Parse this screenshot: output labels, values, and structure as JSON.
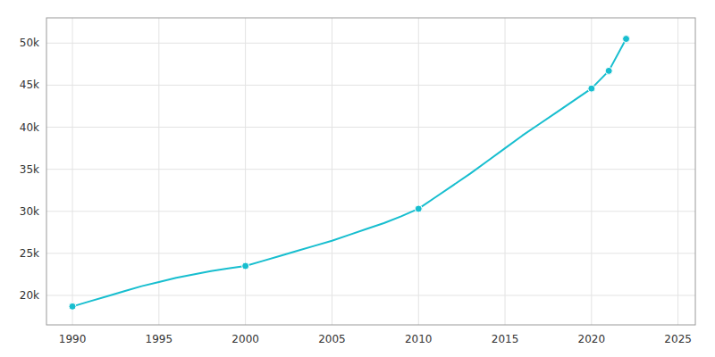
{
  "chart_data": {
    "type": "line",
    "x": [
      1990,
      1991,
      1992,
      1993,
      1994,
      1995,
      1996,
      1997,
      1998,
      1999,
      2000,
      2001,
      2002,
      2003,
      2004,
      2005,
      2006,
      2007,
      2008,
      2009,
      2010,
      2011,
      2012,
      2013,
      2014,
      2015,
      2016,
      2017,
      2018,
      2019,
      2020,
      2021,
      2022
    ],
    "series": [
      {
        "color": "#17becf",
        "values": [
          18690,
          19300,
          19900,
          20500,
          21100,
          21600,
          22100,
          22500,
          22900,
          23200,
          23500,
          24100,
          24700,
          25300,
          25900,
          26500,
          27200,
          27900,
          28600,
          29400,
          30300,
          31700,
          33100,
          34500,
          36000,
          37500,
          39000,
          40400,
          41800,
          43200,
          44600,
          46700,
          50500
        ]
      },
      {
        "type": "scatter",
        "marker": "circle",
        "color": "#17becf",
        "x": [
          1990,
          2000,
          2010,
          2020,
          2021,
          2022
        ],
        "values": [
          18690,
          23500,
          30300,
          44600,
          46700,
          50500
        ]
      }
    ],
    "xlim": [
      1988.5,
      2026
    ],
    "ylim": [
      16500,
      53000
    ],
    "xticks": [
      1990,
      1995,
      2000,
      2005,
      2010,
      2015,
      2020,
      2025
    ],
    "yticks": [
      {
        "value": 20000,
        "label": "20k"
      },
      {
        "value": 25000,
        "label": "25k"
      },
      {
        "value": 30000,
        "label": "30k"
      },
      {
        "value": 35000,
        "label": "35k"
      },
      {
        "value": 40000,
        "label": "40k"
      },
      {
        "value": 45000,
        "label": "45k"
      },
      {
        "value": 50000,
        "label": "50k"
      }
    ],
    "grid": true
  }
}
